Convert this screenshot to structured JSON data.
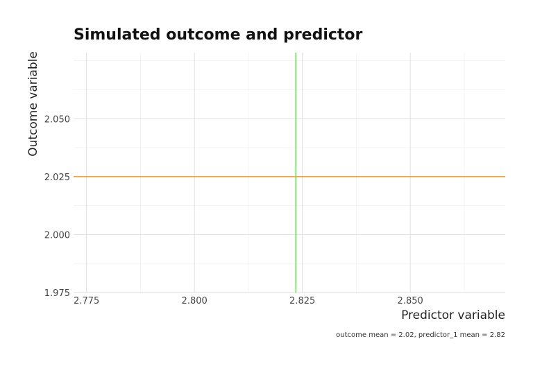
{
  "chart_data": {
    "type": "line",
    "title": "Simulated outcome and predictor",
    "xlabel": "Predictor variable",
    "ylabel": "Outcome variable",
    "caption": "outcome mean = 2.02, predictor_1 mean = 2.82",
    "xlim": [
      2.772,
      2.872
    ],
    "ylim": [
      1.975,
      2.0785
    ],
    "x_ticks": [
      2.775,
      2.8,
      2.825,
      2.85
    ],
    "x_tick_labels": [
      "2.775",
      "2.800",
      "2.825",
      "2.850"
    ],
    "y_ticks": [
      1.975,
      2.0,
      2.025,
      2.05
    ],
    "y_tick_labels": [
      "1.975",
      "2.000",
      "2.025",
      "2.050"
    ],
    "grid": true,
    "reference_lines": [
      {
        "orientation": "vertical",
        "value": 2.8235,
        "color": "#5ee64a"
      },
      {
        "orientation": "horizontal",
        "value": 2.025,
        "color": "#f5a03c"
      }
    ]
  }
}
